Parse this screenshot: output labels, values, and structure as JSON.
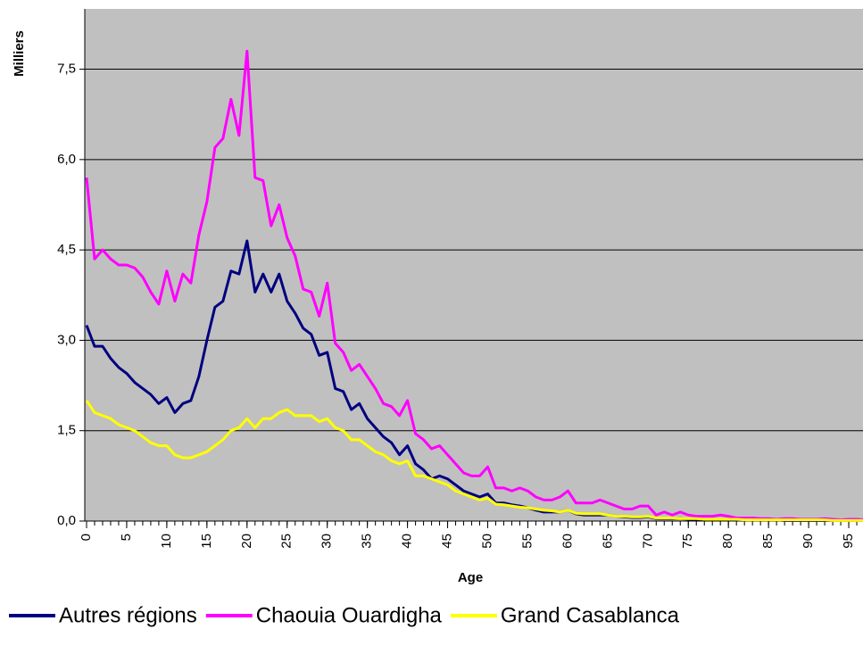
{
  "chart_data": {
    "type": "line",
    "y_label": "Milliers",
    "x_label": "Age",
    "x": [
      0,
      1,
      2,
      3,
      4,
      5,
      6,
      7,
      8,
      9,
      10,
      11,
      12,
      13,
      14,
      15,
      16,
      17,
      18,
      19,
      20,
      21,
      22,
      23,
      24,
      25,
      26,
      27,
      28,
      29,
      30,
      31,
      32,
      33,
      34,
      35,
      36,
      37,
      38,
      39,
      40,
      41,
      42,
      43,
      44,
      45,
      46,
      47,
      48,
      49,
      50,
      51,
      52,
      53,
      54,
      55,
      56,
      57,
      58,
      59,
      60,
      61,
      62,
      63,
      64,
      65,
      66,
      67,
      68,
      69,
      70,
      71,
      72,
      73,
      74,
      75,
      76,
      77,
      78,
      79,
      80,
      81,
      82,
      83,
      84,
      85,
      86,
      87,
      88,
      89,
      90,
      91,
      92,
      93,
      94,
      95,
      96,
      97
    ],
    "series": [
      {
        "name": "Autres régions",
        "color": "#000080",
        "values": [
          3.25,
          2.9,
          2.9,
          2.7,
          2.55,
          2.45,
          2.3,
          2.2,
          2.1,
          1.95,
          2.05,
          1.8,
          1.95,
          2.0,
          2.4,
          3.0,
          3.55,
          3.65,
          4.15,
          4.1,
          4.65,
          3.8,
          4.1,
          3.8,
          4.1,
          3.65,
          3.45,
          3.2,
          3.1,
          2.75,
          2.8,
          2.2,
          2.15,
          1.85,
          1.95,
          1.7,
          1.55,
          1.4,
          1.3,
          1.1,
          1.25,
          0.95,
          0.85,
          0.7,
          0.75,
          0.7,
          0.6,
          0.5,
          0.45,
          0.4,
          0.45,
          0.3,
          0.3,
          0.27,
          0.25,
          0.22,
          0.18,
          0.15,
          0.15,
          0.15,
          0.18,
          0.12,
          0.1,
          0.1,
          0.1,
          0.1,
          0.08,
          0.07,
          0.06,
          0.06,
          0.07,
          0.04,
          0.04,
          0.04,
          0.04,
          0.03,
          0.03,
          0.03,
          0.03,
          0.03,
          0.03,
          0.02,
          0.02,
          0.02,
          0.02,
          0.02,
          0.02,
          0.01,
          0.01,
          0.01,
          0.01,
          0.01,
          0.01,
          0.01,
          0.01,
          0.01,
          0.01,
          0.01
        ]
      },
      {
        "name": "Chaouia Ouardigha",
        "color": "#ff00ff",
        "values": [
          5.7,
          4.35,
          4.5,
          4.35,
          4.25,
          4.25,
          4.2,
          4.05,
          3.8,
          3.6,
          4.15,
          3.65,
          4.1,
          3.95,
          4.75,
          5.3,
          6.2,
          6.35,
          7.0,
          6.4,
          7.8,
          5.7,
          5.65,
          4.9,
          5.25,
          4.7,
          4.4,
          3.85,
          3.8,
          3.4,
          3.95,
          2.95,
          2.8,
          2.5,
          2.6,
          2.4,
          2.2,
          1.95,
          1.9,
          1.75,
          2.0,
          1.45,
          1.35,
          1.2,
          1.25,
          1.1,
          0.95,
          0.8,
          0.75,
          0.75,
          0.9,
          0.55,
          0.55,
          0.5,
          0.55,
          0.5,
          0.4,
          0.35,
          0.35,
          0.4,
          0.5,
          0.3,
          0.3,
          0.3,
          0.35,
          0.3,
          0.25,
          0.2,
          0.2,
          0.25,
          0.25,
          0.1,
          0.15,
          0.1,
          0.15,
          0.1,
          0.08,
          0.08,
          0.08,
          0.1,
          0.08,
          0.05,
          0.05,
          0.05,
          0.04,
          0.04,
          0.03,
          0.04,
          0.04,
          0.03,
          0.03,
          0.03,
          0.04,
          0.03,
          0.02,
          0.03,
          0.03,
          0.02
        ]
      },
      {
        "name": "Grand Casablanca",
        "color": "#ffff00",
        "values": [
          2.0,
          1.8,
          1.75,
          1.7,
          1.6,
          1.55,
          1.5,
          1.4,
          1.3,
          1.25,
          1.25,
          1.1,
          1.05,
          1.05,
          1.1,
          1.15,
          1.25,
          1.35,
          1.5,
          1.55,
          1.7,
          1.55,
          1.7,
          1.7,
          1.8,
          1.85,
          1.75,
          1.75,
          1.75,
          1.65,
          1.7,
          1.55,
          1.5,
          1.35,
          1.35,
          1.25,
          1.15,
          1.1,
          1.0,
          0.95,
          1.0,
          0.75,
          0.75,
          0.7,
          0.65,
          0.6,
          0.5,
          0.45,
          0.4,
          0.35,
          0.38,
          0.28,
          0.27,
          0.25,
          0.23,
          0.22,
          0.2,
          0.18,
          0.17,
          0.15,
          0.18,
          0.13,
          0.12,
          0.12,
          0.12,
          0.1,
          0.08,
          0.08,
          0.07,
          0.07,
          0.08,
          0.05,
          0.05,
          0.05,
          0.04,
          0.04,
          0.04,
          0.03,
          0.03,
          0.03,
          0.03,
          0.03,
          0.02,
          0.02,
          0.02,
          0.02,
          0.02,
          0.02,
          0.02,
          0.02,
          0.02,
          0.02,
          0.02,
          0.01,
          0.01,
          0.01,
          0.01,
          0.01
        ]
      }
    ],
    "xlim": [
      0,
      97
    ],
    "xticks": [
      0,
      5,
      10,
      15,
      20,
      25,
      30,
      35,
      40,
      45,
      50,
      55,
      60,
      65,
      70,
      75,
      80,
      85,
      90,
      95
    ],
    "ylim": [
      0,
      8.5
    ],
    "yticks": [
      {
        "value": 0,
        "label": "0,0"
      },
      {
        "value": 1.5,
        "label": "1,5"
      },
      {
        "value": 3,
        "label": "3,0"
      },
      {
        "value": 4.5,
        "label": "4,5"
      },
      {
        "value": 6,
        "label": "6,0"
      },
      {
        "value": 7.5,
        "label": "7,5"
      }
    ],
    "grid": true,
    "legend": "bottom"
  }
}
